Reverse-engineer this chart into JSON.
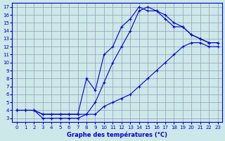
{
  "xlabel": "Graphe des températures (°C)",
  "xlim": [
    0,
    23
  ],
  "ylim": [
    3,
    17
  ],
  "xticks": [
    0,
    1,
    2,
    3,
    4,
    5,
    6,
    7,
    8,
    9,
    10,
    11,
    12,
    13,
    14,
    15,
    16,
    17,
    18,
    19,
    20,
    21,
    22,
    23
  ],
  "yticks": [
    3,
    4,
    5,
    6,
    7,
    8,
    9,
    10,
    11,
    12,
    13,
    14,
    15,
    16,
    17
  ],
  "bg_color": "#cce8e8",
  "grid_color": "#9999bb",
  "line_color": "#0000cc",
  "line1_x": [
    0,
    1,
    2,
    3,
    4,
    5,
    6,
    7,
    8,
    9,
    10,
    11,
    12,
    13,
    14,
    15,
    16,
    17,
    18,
    19,
    20,
    21,
    22,
    23
  ],
  "line1_y": [
    4.0,
    4.0,
    4.0,
    3.5,
    3.5,
    3.5,
    3.5,
    3.5,
    3.5,
    5.0,
    7.5,
    10.0,
    12.0,
    14.0,
    16.5,
    17.0,
    16.5,
    16.0,
    15.0,
    14.5,
    13.5,
    13.0,
    12.5,
    12.5
  ],
  "line2_x": [
    0,
    1,
    2,
    3,
    4,
    5,
    6,
    7,
    8,
    9,
    10,
    11,
    12,
    13,
    14,
    15,
    16,
    17,
    18,
    19,
    20,
    21,
    22,
    23
  ],
  "line2_y": [
    4.0,
    4.0,
    4.0,
    3.5,
    3.5,
    3.5,
    3.5,
    3.5,
    8.0,
    6.5,
    11.0,
    12.0,
    14.5,
    15.5,
    17.0,
    16.5,
    16.5,
    15.5,
    14.5,
    14.5,
    13.5,
    13.0,
    12.5,
    12.5
  ],
  "line3_x": [
    0,
    1,
    2,
    3,
    4,
    5,
    6,
    7,
    8,
    9,
    10,
    11,
    12,
    13,
    14,
    15,
    16,
    17,
    18,
    19,
    20,
    21,
    22,
    23
  ],
  "line3_y": [
    4.0,
    4.0,
    4.0,
    3.0,
    3.0,
    3.0,
    3.0,
    3.0,
    3.5,
    3.5,
    4.5,
    5.0,
    5.5,
    6.0,
    7.0,
    8.0,
    9.0,
    10.0,
    11.0,
    12.0,
    12.5,
    12.5,
    12.0,
    12.0
  ],
  "marker": "+",
  "markersize": 3,
  "linewidth": 0.8
}
